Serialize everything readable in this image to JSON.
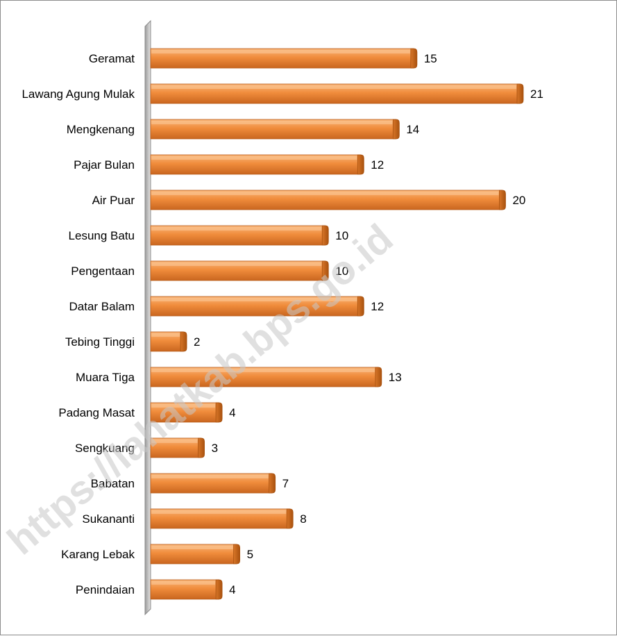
{
  "chart_data": {
    "type": "bar",
    "orientation": "horizontal",
    "categories": [
      "Geramat",
      "Lawang Agung Mulak",
      "Mengkenang",
      "Pajar Bulan",
      "Air Puar",
      "Lesung Batu",
      "Pengentaan",
      "Datar Balam",
      "Tebing Tinggi",
      "Muara Tiga",
      "Padang Masat",
      "Sengkuang",
      "Babatan",
      "Sukananti",
      "Karang Lebak",
      "Penindaian"
    ],
    "values": [
      15,
      21,
      14,
      12,
      20,
      10,
      10,
      12,
      2,
      13,
      4,
      3,
      7,
      8,
      5,
      4
    ],
    "value_labels": [
      "15",
      "21",
      "14",
      "12",
      "20",
      "10",
      "10",
      "12",
      "2",
      "13",
      "4",
      "3",
      "7",
      "8",
      "5",
      "4"
    ],
    "xlim": [
      0,
      21
    ],
    "grid": false,
    "legend": "none",
    "bar_color": "#f08c3c",
    "bar_dark_color": "#b85a17",
    "bar_light_color": "#f9b67a",
    "axis_wall_color": "#c8c8c8",
    "watermark": "https://lahatkab.bps.go.id"
  }
}
